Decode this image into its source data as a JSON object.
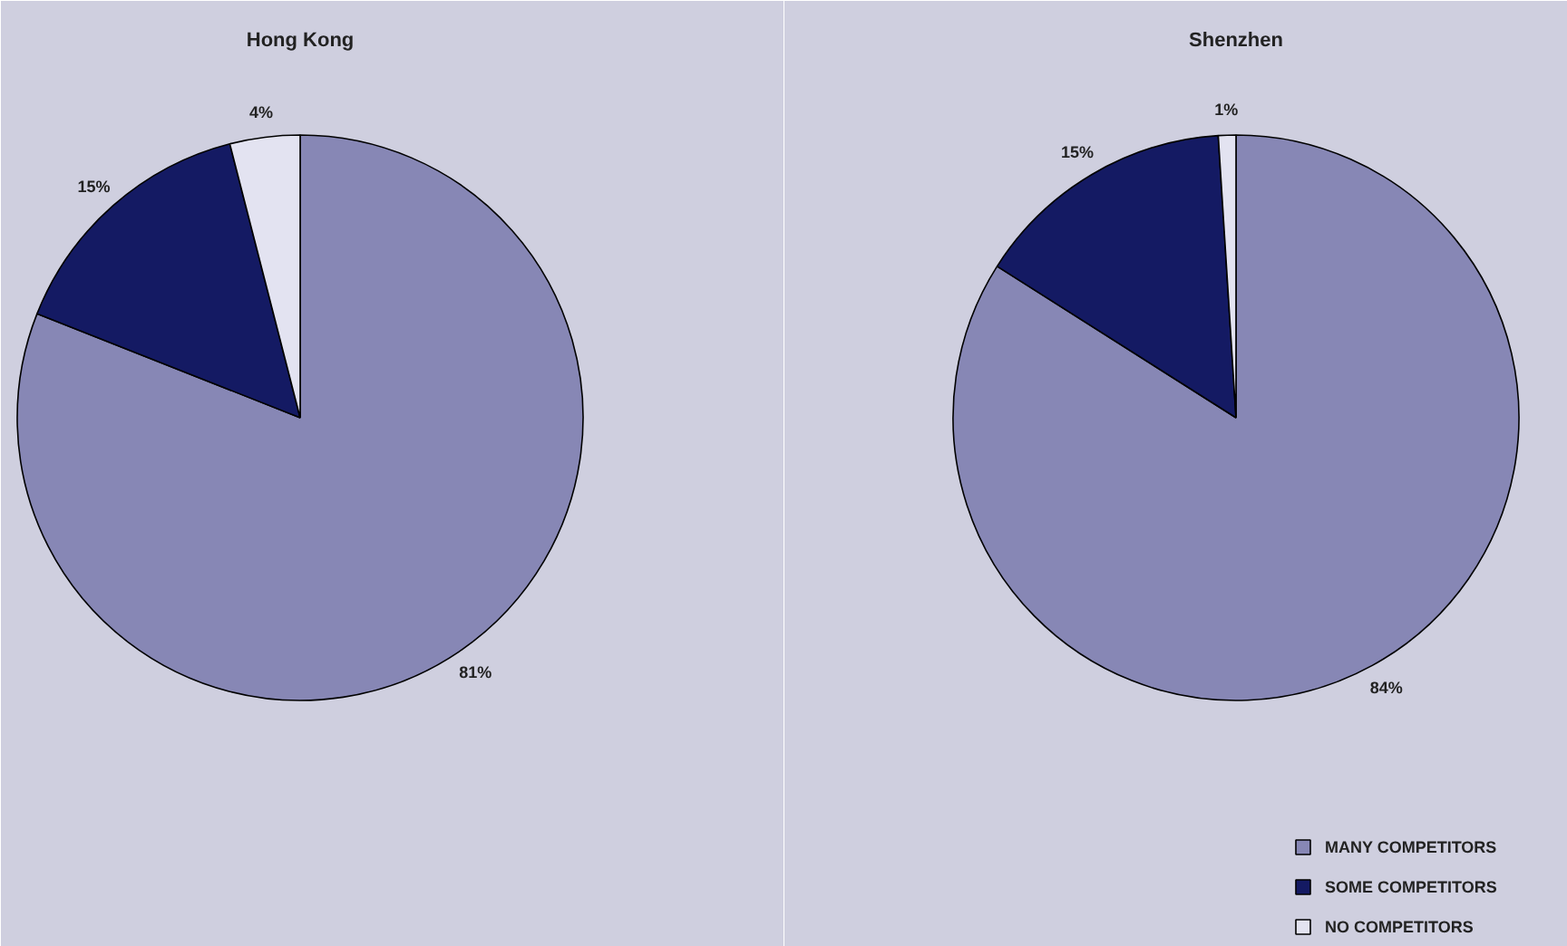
{
  "chart_data": [
    {
      "type": "pie",
      "title": "Hong Kong",
      "categories": [
        "MANY COMPETITORS",
        "SOME COMPETITORS",
        "NO COMPETITORS"
      ],
      "values": [
        81,
        15,
        4
      ],
      "colors": [
        "#8787b5",
        "#141a63",
        "#e3e3f1"
      ],
      "value_labels": [
        "81%",
        "15%",
        "4%"
      ],
      "legend": "bottom right"
    },
    {
      "type": "pie",
      "title": "Shenzhen",
      "values": [
        84,
        15,
        1
      ],
      "colors": [
        "#8787b5",
        "#141a63",
        "#e3e3f1"
      ],
      "value_labels": [
        "84%",
        "15%",
        "1%"
      ]
    }
  ]
}
